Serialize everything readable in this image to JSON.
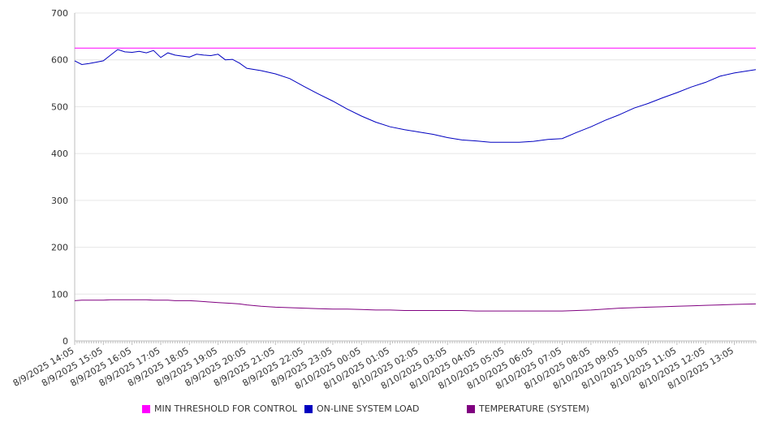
{
  "chart_data": {
    "type": "line",
    "title": "",
    "xlabel": "",
    "ylabel": "",
    "ylim": [
      0,
      700
    ],
    "yticks": [
      0,
      100,
      200,
      300,
      400,
      500,
      600,
      700
    ],
    "grid": true,
    "legend_position": "bottom",
    "x_tick_labels": [
      "8/9/2025 14:05",
      "8/9/2025 15:05",
      "8/9/2025 16:05",
      "8/9/2025 17:05",
      "8/9/2025 18:05",
      "8/9/2025 19:05",
      "8/9/2025 20:05",
      "8/9/2025 21:05",
      "8/9/2025 22:05",
      "8/9/2025 23:05",
      "8/10/2025 00:05",
      "8/10/2025 01:05",
      "8/10/2025 02:05",
      "8/10/2025 03:05",
      "8/10/2025 04:05",
      "8/10/2025 05:05",
      "8/10/2025 06:05",
      "8/10/2025 07:05",
      "8/10/2025 08:05",
      "8/10/2025 09:05",
      "8/10/2025 10:05",
      "8/10/2025 11:05",
      "8/10/2025 12:05",
      "8/10/2025 13:05"
    ],
    "x_hours": [
      0,
      0.25,
      0.5,
      0.75,
      1,
      1.25,
      1.5,
      1.75,
      2,
      2.25,
      2.5,
      2.75,
      3,
      3.25,
      3.5,
      3.75,
      4,
      4.25,
      4.5,
      4.75,
      5,
      5.25,
      5.5,
      5.75,
      6,
      6.5,
      7,
      7.5,
      8,
      8.5,
      9,
      9.5,
      10,
      10.5,
      11,
      11.5,
      12,
      12.5,
      13,
      13.5,
      14,
      14.5,
      15,
      15.5,
      16,
      16.5,
      17,
      17.5,
      18,
      18.5,
      19,
      19.5,
      20,
      20.5,
      21,
      21.5,
      22,
      22.5,
      23,
      23.75
    ],
    "series": [
      {
        "name": "MIN THRESHOLD FOR CONTROL",
        "color": "#ff00ff",
        "values": [
          625,
          625,
          625,
          625,
          625,
          625,
          625,
          625,
          625,
          625,
          625,
          625,
          625,
          625,
          625,
          625,
          625,
          625,
          625,
          625,
          625,
          625,
          625,
          625,
          625,
          625,
          625,
          625,
          625,
          625,
          625,
          625,
          625,
          625,
          625,
          625,
          625,
          625,
          625,
          625,
          625,
          625,
          625,
          625,
          625,
          625,
          625,
          625,
          625,
          625,
          625,
          625,
          625,
          625,
          625,
          625,
          625,
          625,
          625,
          625
        ]
      },
      {
        "name": "ON-LINE SYSTEM LOAD",
        "color": "#0000c0",
        "values": [
          598,
          590,
          592,
          595,
          598,
          610,
          622,
          617,
          616,
          618,
          615,
          620,
          605,
          615,
          610,
          608,
          606,
          612,
          610,
          609,
          612,
          600,
          601,
          593,
          582,
          577,
          570,
          560,
          543,
          527,
          512,
          495,
          480,
          467,
          457,
          451,
          446,
          441,
          434,
          429,
          427,
          424,
          424,
          424,
          426,
          430,
          432,
          445,
          457,
          471,
          483,
          497,
          507,
          519,
          530,
          542,
          552,
          565,
          572,
          579
        ]
      },
      {
        "name": "TEMPERATURE (SYSTEM)",
        "color": "#800080",
        "values": [
          86,
          87,
          87,
          87,
          87,
          88,
          88,
          88,
          88,
          88,
          88,
          87,
          87,
          87,
          86,
          86,
          86,
          85,
          84,
          83,
          82,
          81,
          80,
          79,
          77,
          74,
          72,
          71,
          70,
          69,
          68,
          68,
          67,
          66,
          66,
          65,
          65,
          65,
          65,
          65,
          64,
          64,
          64,
          64,
          64,
          64,
          64,
          65,
          66,
          68,
          70,
          71,
          72,
          73,
          74,
          75,
          76,
          77,
          78,
          79
        ]
      }
    ]
  }
}
